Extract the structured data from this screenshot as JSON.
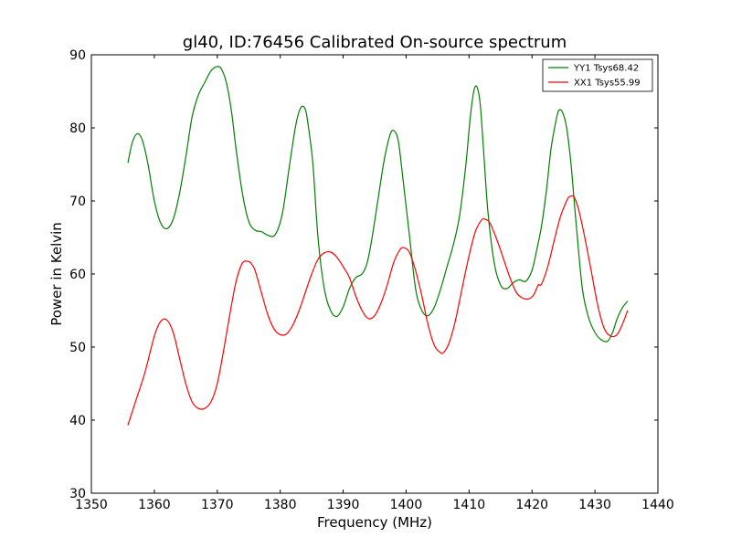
{
  "chart_data": {
    "type": "line",
    "title": "gl40, ID:76456 Calibrated On-source spectrum",
    "xlabel": "Frequency (MHz)",
    "ylabel": "Power in Kelvin",
    "xlim": [
      1350,
      1440
    ],
    "ylim": [
      30,
      90
    ],
    "xticks": [
      "1350",
      "1360",
      "1370",
      "1380",
      "1390",
      "1400",
      "1410",
      "1420",
      "1430",
      "1440"
    ],
    "yticks": [
      "30",
      "40",
      "50",
      "60",
      "70",
      "80",
      "90"
    ],
    "grid": false,
    "legend_position": "top-right",
    "series": [
      {
        "name": "YY1 Tsys68.42",
        "color": "#008000",
        "x": [
          1355.8,
          1356.5,
          1357.3,
          1358.1,
          1359.0,
          1360.0,
          1361.0,
          1362.0,
          1363.0,
          1364.0,
          1365.0,
          1366.0,
          1367.0,
          1368.0,
          1369.0,
          1370.0,
          1370.7,
          1371.5,
          1372.3,
          1373.0,
          1374.0,
          1375.0,
          1376.0,
          1377.0,
          1378.0,
          1379.0,
          1379.8,
          1380.5,
          1381.5,
          1382.5,
          1383.3,
          1384.0,
          1384.5,
          1385.2,
          1386.0,
          1387.0,
          1388.0,
          1389.0,
          1390.0,
          1391.0,
          1392.0,
          1393.0,
          1393.8,
          1394.5,
          1395.5,
          1396.5,
          1397.5,
          1398.2,
          1398.8,
          1399.5,
          1400.5,
          1401.5,
          1402.5,
          1403.5,
          1404.5,
          1405.5,
          1406.5,
          1407.5,
          1408.5,
          1409.5,
          1410.2,
          1410.8,
          1411.3,
          1411.8,
          1412.3,
          1413.0,
          1414.0,
          1415.0,
          1416.0,
          1417.0,
          1418.0,
          1419.0,
          1420.0,
          1420.8,
          1421.5,
          1422.3,
          1423.0,
          1423.7,
          1424.2,
          1424.8,
          1425.5,
          1426.2,
          1427.0,
          1428.0,
          1429.0,
          1430.0,
          1431.0,
          1432.0,
          1432.8,
          1433.5,
          1434.3,
          1435.2
        ],
        "values": [
          75.2,
          78.0,
          79.2,
          78.3,
          75.0,
          70.0,
          67.0,
          66.2,
          67.5,
          71.0,
          76.0,
          81.5,
          84.5,
          86.2,
          87.8,
          88.4,
          88.0,
          86.0,
          82.0,
          77.0,
          71.0,
          67.2,
          66.0,
          65.8,
          65.3,
          65.2,
          66.5,
          69.0,
          75.0,
          80.5,
          82.8,
          82.5,
          80.0,
          75.0,
          65.0,
          58.0,
          55.0,
          54.2,
          55.5,
          58.0,
          59.5,
          60.0,
          61.5,
          64.5,
          70.0,
          75.5,
          79.2,
          79.5,
          78.0,
          73.0,
          65.5,
          58.0,
          55.0,
          54.3,
          55.5,
          58.0,
          61.0,
          64.0,
          68.0,
          75.0,
          81.5,
          85.2,
          85.5,
          83.0,
          77.0,
          68.5,
          61.5,
          58.5,
          58.0,
          58.8,
          59.2,
          59.0,
          60.5,
          63.5,
          66.5,
          71.5,
          77.0,
          80.5,
          82.3,
          82.2,
          80.0,
          75.0,
          67.0,
          58.0,
          54.0,
          52.0,
          51.0,
          50.8,
          52.0,
          53.8,
          55.3,
          56.3
        ]
      },
      {
        "name": "XX1 Tsys55.99",
        "color": "#ff0000",
        "x": [
          1355.8,
          1357.0,
          1358.5,
          1360.0,
          1361.0,
          1362.0,
          1363.0,
          1364.0,
          1365.0,
          1366.0,
          1367.0,
          1368.0,
          1369.0,
          1370.0,
          1371.0,
          1372.0,
          1373.0,
          1374.0,
          1375.0,
          1375.5,
          1376.0,
          1377.0,
          1378.0,
          1379.0,
          1380.0,
          1381.0,
          1382.0,
          1383.0,
          1384.0,
          1385.0,
          1386.0,
          1387.0,
          1388.0,
          1389.0,
          1390.0,
          1391.0,
          1392.0,
          1393.0,
          1394.0,
          1395.0,
          1396.0,
          1397.0,
          1398.0,
          1399.0,
          1399.6,
          1400.5,
          1401.5,
          1402.5,
          1403.5,
          1404.5,
          1405.5,
          1406.0,
          1406.8,
          1407.8,
          1409.0,
          1410.0,
          1411.0,
          1412.0,
          1412.5,
          1413.3,
          1414.5,
          1415.5,
          1416.5,
          1417.5,
          1418.5,
          1419.5,
          1420.3,
          1421.0,
          1421.5,
          1422.5,
          1423.5,
          1424.5,
          1425.5,
          1426.0,
          1426.7,
          1427.5,
          1428.5,
          1429.5,
          1430.5,
          1431.5,
          1432.5,
          1433.5,
          1434.3,
          1435.2
        ],
        "values": [
          39.3,
          42.5,
          46.5,
          51.5,
          53.5,
          53.7,
          52.0,
          48.5,
          45.0,
          42.5,
          41.6,
          41.6,
          42.5,
          45.0,
          49.5,
          54.5,
          59.0,
          61.5,
          61.7,
          61.3,
          60.5,
          57.5,
          54.5,
          52.5,
          51.7,
          51.8,
          53.0,
          55.0,
          57.5,
          60.0,
          62.0,
          62.9,
          63.0,
          62.3,
          61.0,
          59.5,
          57.0,
          55.0,
          53.9,
          54.3,
          56.0,
          58.5,
          61.5,
          63.3,
          63.6,
          63.0,
          60.5,
          57.0,
          53.0,
          50.2,
          49.2,
          49.3,
          50.5,
          53.5,
          58.5,
          62.5,
          65.8,
          67.4,
          67.5,
          67.0,
          64.5,
          62.0,
          59.5,
          57.5,
          56.7,
          56.6,
          57.2,
          58.5,
          58.6,
          61.0,
          64.5,
          67.8,
          70.0,
          70.6,
          70.5,
          68.5,
          64.5,
          60.0,
          55.5,
          52.5,
          51.5,
          51.7,
          53.0,
          55.0
        ]
      }
    ]
  }
}
